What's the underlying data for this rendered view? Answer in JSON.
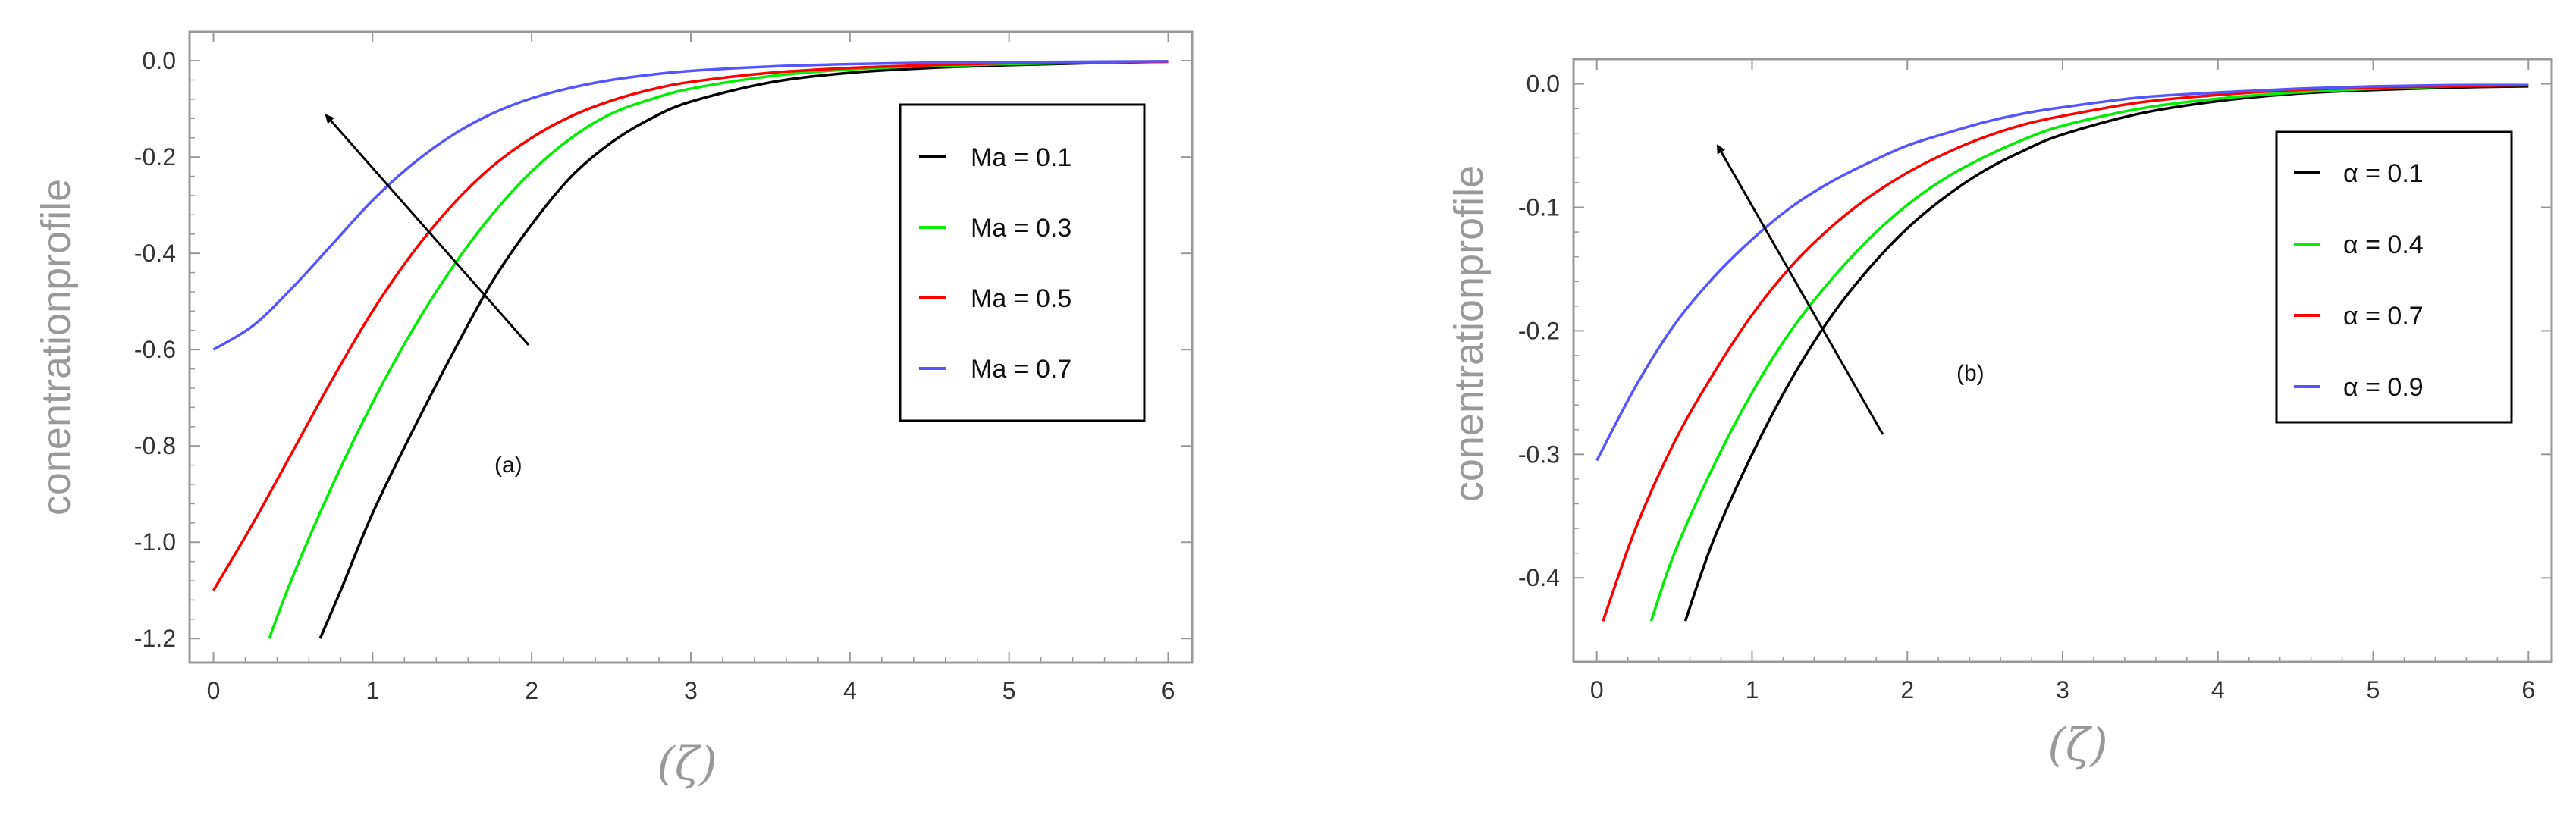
{
  "chart_data": [
    {
      "type": "line",
      "annotation": "(a)",
      "xlabel": "(ζ)",
      "ylabel": "conentrationprofile",
      "xlim": [
        -0.15,
        6.15
      ],
      "ylim": [
        -1.25,
        0.06
      ],
      "xticks": [
        0,
        1,
        2,
        3,
        4,
        5,
        6
      ],
      "yticks": [
        0.0,
        -0.2,
        -0.4,
        -0.6,
        -0.8,
        -1.0,
        -1.2
      ],
      "xtick_labels": [
        "0",
        "1",
        "2",
        "3",
        "4",
        "5",
        "6"
      ],
      "ytick_labels": [
        "0.0",
        "-0.2",
        "-0.4",
        "-0.6",
        "-0.8",
        "-1.0",
        "-1.2"
      ],
      "legend_position": "top-right",
      "series": [
        {
          "name": "Ma = 0.1",
          "color": "#000000",
          "x": [
            0.67,
            0.8,
            1.0,
            1.25,
            1.5,
            1.75,
            2.0,
            2.25,
            2.5,
            2.75,
            3.0,
            3.5,
            4.0,
            4.5,
            5.0,
            5.5,
            6.0
          ],
          "y": [
            -1.2,
            -1.1,
            -0.94,
            -0.77,
            -0.61,
            -0.46,
            -0.34,
            -0.24,
            -0.17,
            -0.12,
            -0.085,
            -0.045,
            -0.025,
            -0.015,
            -0.009,
            -0.005,
            -0.002
          ]
        },
        {
          "name": "Ma = 0.3",
          "color": "#00ee00",
          "x": [
            0.35,
            0.5,
            0.75,
            1.0,
            1.25,
            1.5,
            1.75,
            2.0,
            2.25,
            2.5,
            2.75,
            3.0,
            3.5,
            4.0,
            4.5,
            5.0,
            5.5,
            6.0
          ],
          "y": [
            -1.2,
            -1.07,
            -0.88,
            -0.71,
            -0.56,
            -0.43,
            -0.32,
            -0.23,
            -0.16,
            -0.11,
            -0.08,
            -0.058,
            -0.032,
            -0.018,
            -0.011,
            -0.007,
            -0.004,
            -0.002
          ]
        },
        {
          "name": "Ma = 0.5",
          "color": "#ff0000",
          "x": [
            0.0,
            0.25,
            0.5,
            0.75,
            1.0,
            1.25,
            1.5,
            1.75,
            2.0,
            2.25,
            2.5,
            2.75,
            3.0,
            3.5,
            4.0,
            4.5,
            5.0,
            5.5,
            6.0
          ],
          "y": [
            -1.1,
            -0.96,
            -0.81,
            -0.66,
            -0.52,
            -0.4,
            -0.3,
            -0.22,
            -0.16,
            -0.115,
            -0.083,
            -0.06,
            -0.044,
            -0.025,
            -0.015,
            -0.009,
            -0.005,
            -0.003,
            -0.002
          ]
        },
        {
          "name": "Ma = 0.7",
          "color": "#5555ff",
          "x": [
            0.0,
            0.25,
            0.5,
            0.75,
            1.0,
            1.25,
            1.5,
            1.75,
            2.0,
            2.25,
            2.5,
            2.75,
            3.0,
            3.5,
            4.0,
            4.5,
            5.0,
            5.5,
            6.0
          ],
          "y": [
            -0.6,
            -0.55,
            -0.47,
            -0.38,
            -0.29,
            -0.215,
            -0.155,
            -0.11,
            -0.078,
            -0.056,
            -0.04,
            -0.029,
            -0.021,
            -0.012,
            -0.007,
            -0.004,
            -0.003,
            -0.002,
            -0.001
          ]
        }
      ]
    },
    {
      "type": "line",
      "annotation": "(b)",
      "xlabel": "(ζ)",
      "ylabel": "conentrationprofile",
      "xlim": [
        -0.15,
        6.15
      ],
      "ylim": [
        -0.468,
        0.02
      ],
      "xticks": [
        0,
        1,
        2,
        3,
        4,
        5,
        6
      ],
      "yticks": [
        0.0,
        -0.1,
        -0.2,
        -0.3,
        -0.4
      ],
      "xtick_labels": [
        "0",
        "1",
        "2",
        "3",
        "4",
        "5",
        "6"
      ],
      "ytick_labels": [
        "0.0",
        "-0.1",
        "-0.2",
        "-0.3",
        "-0.4"
      ],
      "legend_position": "top-right",
      "series": [
        {
          "name": "α = 0.1",
          "color": "#000000",
          "x": [
            0.57,
            0.75,
            1.0,
            1.25,
            1.5,
            1.75,
            2.0,
            2.25,
            2.5,
            2.75,
            3.0,
            3.5,
            4.0,
            4.5,
            5.0,
            5.5,
            6.0
          ],
          "y": [
            -0.435,
            -0.37,
            -0.3,
            -0.24,
            -0.19,
            -0.15,
            -0.117,
            -0.091,
            -0.07,
            -0.054,
            -0.041,
            -0.024,
            -0.014,
            -0.008,
            -0.005,
            -0.003,
            -0.002
          ]
        },
        {
          "name": "α = 0.4",
          "color": "#00ee00",
          "x": [
            0.35,
            0.5,
            0.75,
            1.0,
            1.25,
            1.5,
            1.75,
            2.0,
            2.25,
            2.5,
            2.75,
            3.0,
            3.5,
            4.0,
            4.5,
            5.0,
            5.5,
            6.0
          ],
          "y": [
            -0.435,
            -0.38,
            -0.31,
            -0.25,
            -0.2,
            -0.16,
            -0.126,
            -0.098,
            -0.076,
            -0.059,
            -0.045,
            -0.034,
            -0.02,
            -0.012,
            -0.007,
            -0.004,
            -0.002,
            -0.001
          ]
        },
        {
          "name": "α = 0.7",
          "color": "#ff0000",
          "x": [
            0.04,
            0.25,
            0.5,
            0.75,
            1.0,
            1.25,
            1.5,
            1.75,
            2.0,
            2.25,
            2.5,
            2.75,
            3.0,
            3.5,
            4.0,
            4.5,
            5.0,
            5.5,
            6.0
          ],
          "y": [
            -0.435,
            -0.36,
            -0.29,
            -0.235,
            -0.187,
            -0.148,
            -0.117,
            -0.092,
            -0.072,
            -0.056,
            -0.043,
            -0.033,
            -0.026,
            -0.015,
            -0.009,
            -0.005,
            -0.003,
            -0.002,
            -0.001
          ]
        },
        {
          "name": "α = 0.9",
          "color": "#5555ff",
          "x": [
            0.0,
            0.25,
            0.5,
            0.75,
            1.0,
            1.25,
            1.5,
            1.75,
            2.0,
            2.25,
            2.5,
            2.75,
            3.0,
            3.5,
            4.0,
            4.5,
            5.0,
            5.5,
            6.0
          ],
          "y": [
            -0.305,
            -0.245,
            -0.195,
            -0.157,
            -0.126,
            -0.1,
            -0.08,
            -0.064,
            -0.05,
            -0.04,
            -0.031,
            -0.024,
            -0.019,
            -0.011,
            -0.007,
            -0.004,
            -0.002,
            -0.001,
            -0.001
          ]
        }
      ]
    }
  ]
}
